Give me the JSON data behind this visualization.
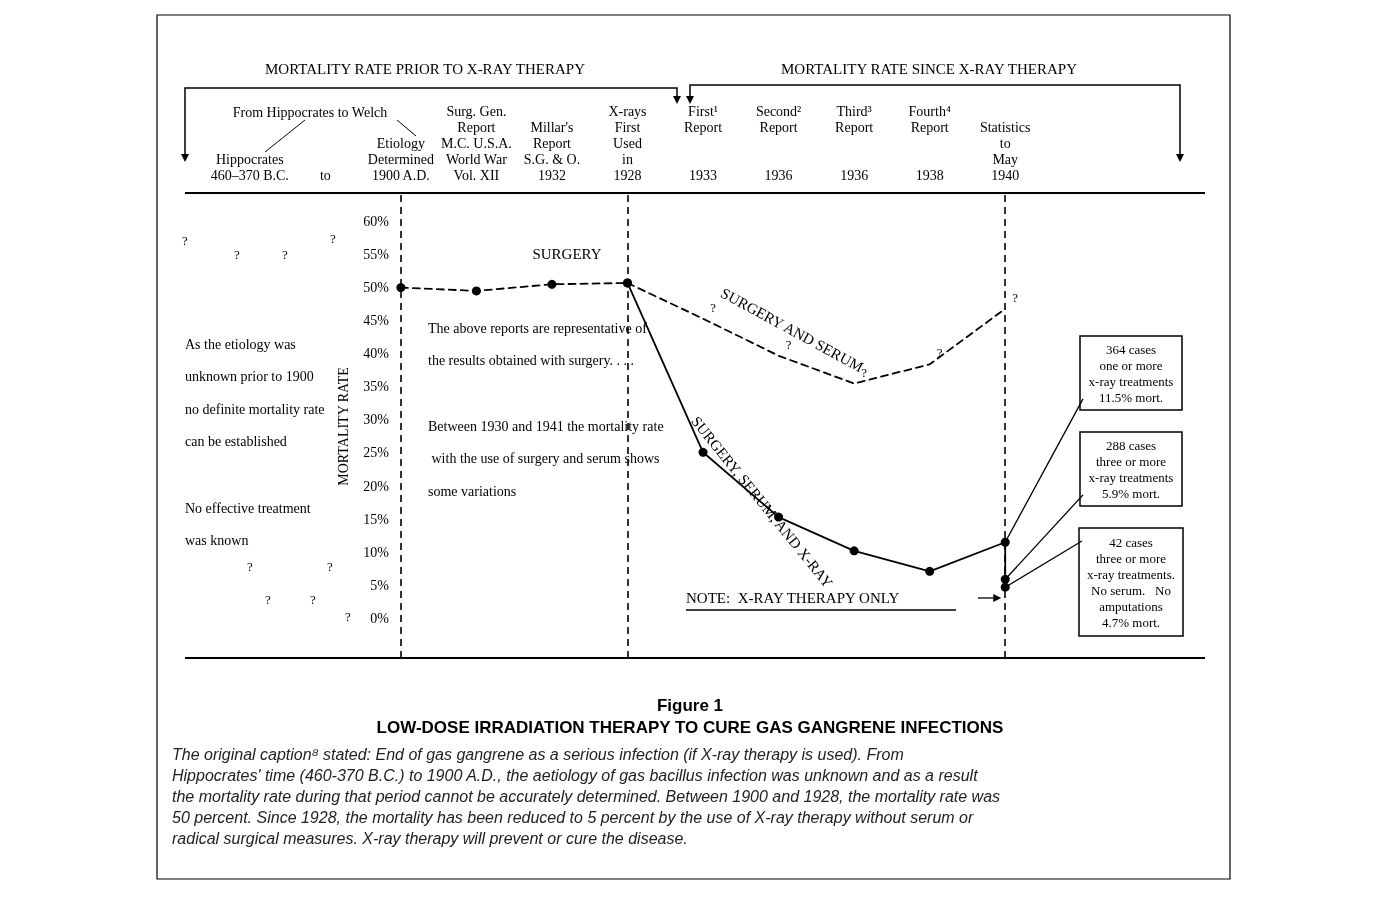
{
  "chart_data": {
    "type": "line",
    "title": "Figure 1",
    "subtitle": "LOW-DOSE IRRADIATION THERAPY TO CURE GAS GANGRENE INFECTIONS",
    "ylabel": "MORTALITY RATE",
    "categories": [
      "Hippocrates\n460–370 B.C.",
      "to",
      "Etiology\nDetermined\n1900 A.D.",
      "Surg. Gen.\nReport\nM.C. U.S.A.\nWorld War\nVol. XII",
      "Millar's\nReport\nS.G. & O.\n1932",
      "X-rays\nFirst\nUsed\nin\n1928",
      "First¹\nReport\n\n\n1933",
      "Second²\nReport\n\n\n1936",
      "Third³\nReport\n\n\n1936",
      "Fourth⁴\nReport\n\n\n1938",
      "Statistics\nto\nMay\n1940"
    ],
    "ylim": [
      -6,
      64
    ],
    "yticks": [
      {
        "value": 0,
        "label": "0%"
      },
      {
        "value": 5,
        "label": "5%"
      },
      {
        "value": 10,
        "label": "10%"
      },
      {
        "value": 15,
        "label": "15%"
      },
      {
        "value": 20,
        "label": "20%"
      },
      {
        "value": 25,
        "label": "25%"
      },
      {
        "value": 30,
        "label": "30%"
      },
      {
        "value": 35,
        "label": "35%"
      },
      {
        "value": 40,
        "label": "40%"
      },
      {
        "value": 45,
        "label": "45%"
      },
      {
        "value": 50,
        "label": "50%"
      },
      {
        "value": 55,
        "label": "55%"
      },
      {
        "value": 60,
        "label": "60%"
      }
    ],
    "grid": false,
    "series": [
      {
        "name": "SURGERY",
        "color": "#000000",
        "line_style": "dashed",
        "marker": "circle",
        "x": [
          "Etiology\nDetermined\n1900 A.D.",
          "Surg. Gen.\nReport\nM.C. U.S.A.\nWorld War\nVol. XII",
          "Millar's\nReport\nS.G. & O.\n1932",
          "X-rays\nFirst\nUsed\nin\n1928"
        ],
        "values": [
          50,
          49.5,
          50.5,
          50.7
        ]
      },
      {
        "name": "SURGERY AND SERUM",
        "color": "#000000",
        "line_style": "dashed",
        "marker": "none",
        "x": [
          "X-rays\nFirst\nUsed\nin\n1928",
          "First¹\nReport\n\n\n1933",
          "Second²\nReport\n\n\n1936",
          "Third³\nReport\n\n\n1936",
          "Fourth⁴\nReport\n\n\n1938",
          "Statistics\nto\nMay\n1940"
        ],
        "values": [
          50.7,
          45.3,
          39.7,
          35.5,
          38.4,
          46.8
        ],
        "value_labels": [
          null,
          "?",
          "?",
          "?",
          "?",
          "?"
        ]
      },
      {
        "name": "SURGERY, SERUM, AND X-RAY",
        "color": "#000000",
        "line_style": "solid",
        "marker": "circle",
        "x": [
          "X-rays\nFirst\nUsed\nin\n1928",
          "First¹\nReport\n\n\n1933",
          "Second²\nReport\n\n\n1936",
          "Third³\nReport\n\n\n1936",
          "Fourth⁴\nReport\n\n\n1938",
          "Statistics\nto\nMay\n1940",
          "Statistics\nto\nMay\n1940",
          "Statistics\nto\nMay\n1940"
        ],
        "values": [
          50.7,
          25.1,
          15.3,
          10.2,
          7.1,
          11.5,
          5.9,
          4.7
        ]
      }
    ],
    "ref_lines": [
      {
        "axis": "x",
        "value": "Etiology\nDetermined\n1900 A.D.",
        "line_style": "dashed",
        "color": "#000000"
      },
      {
        "axis": "x",
        "value": "X-rays\nFirst\nUsed\nin\n1928",
        "line_style": "dashed",
        "color": "#000000"
      },
      {
        "axis": "x",
        "value": "Statistics\nto\nMay\n1940",
        "line_style": "dashed",
        "color": "#000000"
      }
    ],
    "annotations": [
      "MORTALITY RATE PRIOR TO X-RAY THERAPY",
      "MORTALITY RATE SINCE X-RAY THERAPY",
      "From Hippocrates to Welch",
      "As the etiology was unknown prior to 1900 no definite mortality rate can be established",
      "No effective treatment was known",
      "The above reports are representative of the results obtained with surgery. . . .",
      "Between 1930 and 1941 the mortality rate with the use of surgery and serum shows some variations",
      "NOTE:  X-RAY THERAPY ONLY",
      {
        "text": "364 cases\none or more\nx-ray treatments\n11.5% mort.",
        "x": "Statistics\nto\nMay\n1940",
        "y": 11.5
      },
      {
        "text": "288 cases\nthree or more\nx-ray treatments\n5.9% mort.",
        "x": "Statistics\nto\nMay\n1940",
        "y": 5.9
      },
      {
        "text": "42 cases\nthree or more\nx-ray treatments.\nNo serum.   No\namputations\n4.7% mort.",
        "x": "Statistics\nto\nMay\n1940",
        "y": 4.7
      },
      "The original caption⁸ stated: End of gas gangrene as a serious infection (if X-ray therapy is used). From Hippocrates' time (460-370 B.C.) to 1900 A.D., the aetiology of gas bacillus infection was unknown and as a result the mortality rate during that period cannot be accurately determined. Between 1900 and 1928, the mortality rate was 50 percent. Since 1928, the mortality has been reduced to 5 percent by the use of X-ray therapy without serum or radical surgical measures. X-ray therapy will prevent or cure the disease.",
      "?",
      "?",
      "?",
      "?",
      "?",
      "?",
      "?",
      "?",
      "?"
    ]
  }
}
